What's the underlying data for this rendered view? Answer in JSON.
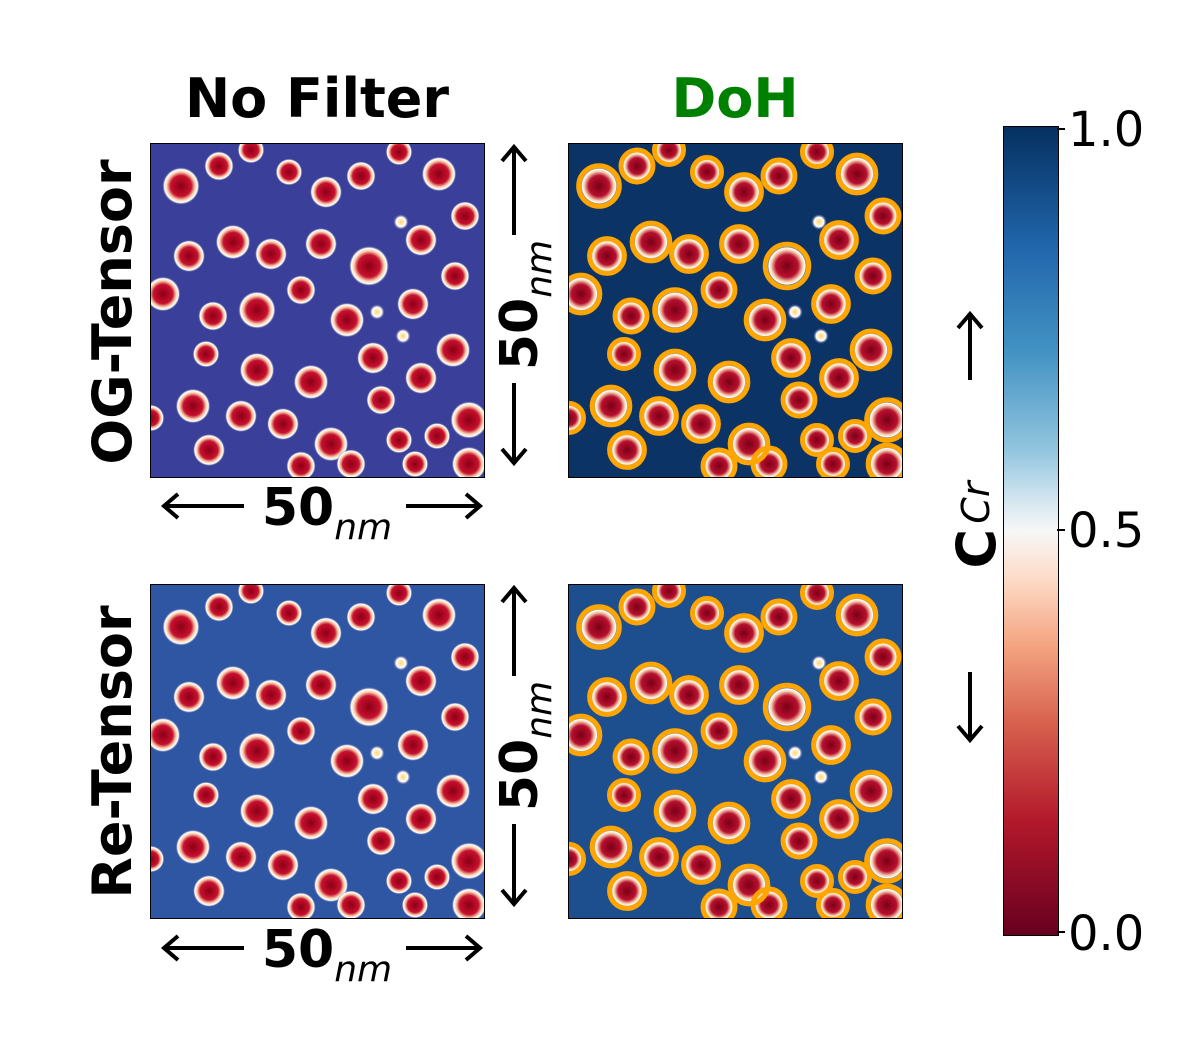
{
  "columns": [
    {
      "label": "No Filter",
      "color": "#000000"
    },
    {
      "label": "DoH",
      "color": "#008000"
    }
  ],
  "rows": [
    {
      "label": "OG-Tensor"
    },
    {
      "label": "Re-Tensor"
    }
  ],
  "scale": {
    "value": "50",
    "unit": "nm"
  },
  "colorbar": {
    "label_main": "C",
    "label_sub": "Cr",
    "colormap": "RdBu",
    "ticks": [
      "0.0",
      "0.5",
      "1.0"
    ],
    "range": [
      0.0,
      1.0
    ]
  },
  "overlay_color": "#FFA500"
}
